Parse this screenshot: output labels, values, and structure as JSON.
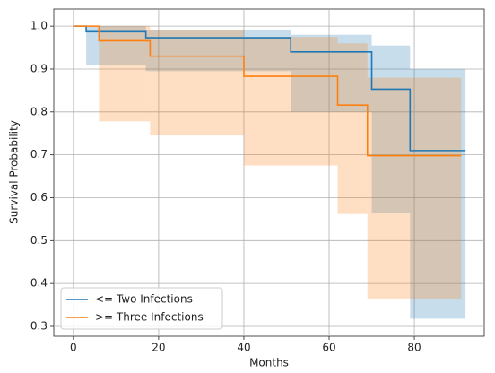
{
  "chart_data": {
    "type": "step",
    "xlabel": "Months",
    "ylabel": "Survival Probability",
    "xlim": [
      -4.6,
      96.4
    ],
    "ylim": [
      0.277,
      1.04
    ],
    "xticks": [
      0,
      20,
      40,
      60,
      80
    ],
    "yticks": [
      0.3,
      0.4,
      0.5,
      0.6,
      0.7,
      0.8,
      0.9,
      {
        "value": 1,
        "label": "1.0"
      }
    ],
    "grid": true,
    "legend": "lower left",
    "series": [
      {
        "name": "<= Two Infections",
        "color": "#1f77b4",
        "x": [
          0,
          3,
          17,
          51,
          70,
          79,
          92
        ],
        "values": [
          1,
          0.987,
          0.973,
          0.94,
          0.853,
          0.71,
          0.71
        ],
        "lower": [
          1,
          0.91,
          0.895,
          0.8,
          0.565,
          0.318,
          0.318
        ],
        "upper": [
          1,
          1,
          0.99,
          0.98,
          0.955,
          0.9,
          0.9
        ]
      },
      {
        "name": ">= Three Infections",
        "color": "#ff7f0e",
        "x": [
          0,
          6,
          18,
          40,
          62,
          69,
          91
        ],
        "values": [
          1,
          0.966,
          0.93,
          0.883,
          0.816,
          0.698,
          0.698
        ],
        "lower": [
          1,
          0.778,
          0.745,
          0.675,
          0.562,
          0.365,
          0.365
        ],
        "upper": [
          1,
          1,
          0.99,
          0.975,
          0.96,
          0.88,
          0.88
        ]
      }
    ]
  }
}
